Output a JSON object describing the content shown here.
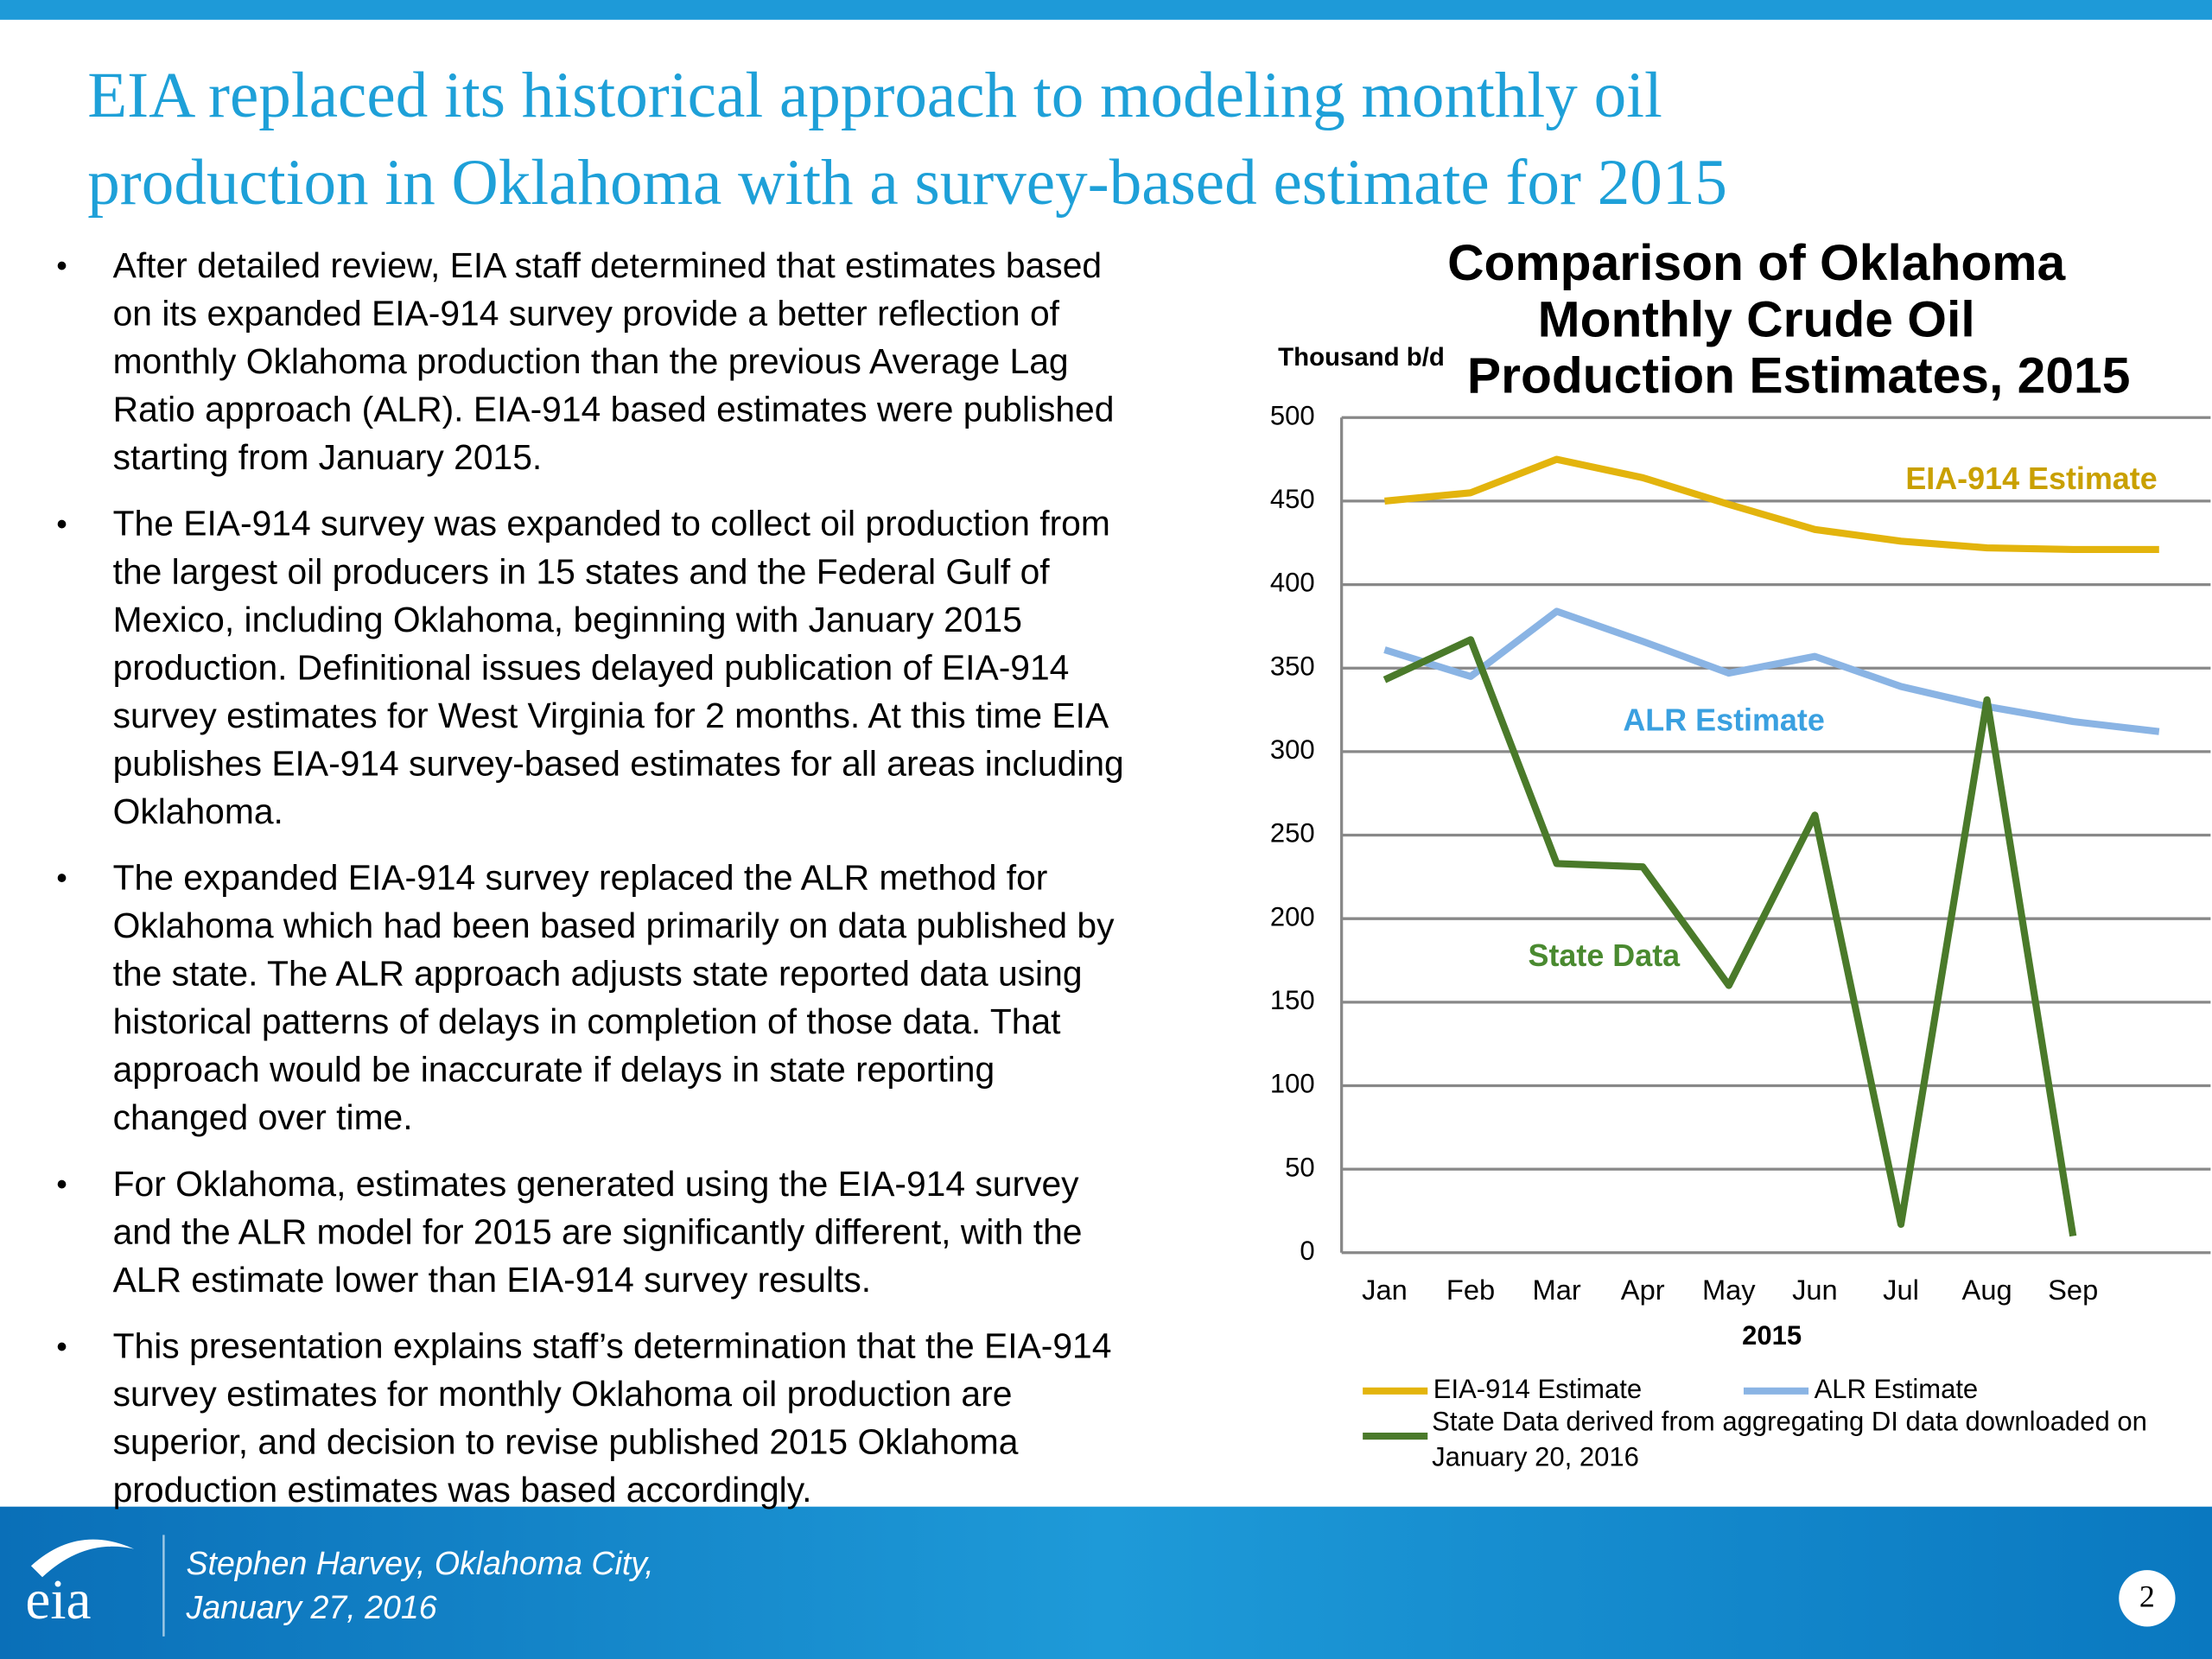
{
  "slide": {
    "title_lines": [
      "EIA replaced its historical approach to modeling monthly oil",
      "production in Oklahoma with a survey-based estimate for 2015"
    ],
    "bullets": [
      [
        "After detailed review, EIA staff determined that estimates based",
        "on its expanded EIA-914 survey provide a better reflection of",
        "monthly Oklahoma production than the previous Average Lag",
        "Ratio approach (ALR). EIA-914 based estimates were published",
        "starting from January 2015."
      ],
      [
        "The EIA-914 survey was expanded to collect oil production from",
        "the largest oil producers in 15 states and the Federal Gulf of",
        "Mexico, including Oklahoma, beginning with January 2015",
        "production. Definitional issues delayed publication of EIA-914",
        "survey estimates for West Virginia for 2 months. At this time EIA",
        "publishes EIA-914 survey-based estimates for all areas including",
        "Oklahoma."
      ],
      [
        "The expanded EIA-914 survey replaced the ALR method for",
        "Oklahoma which had been based primarily on data published by",
        "the state. The ALR approach adjusts state reported data using",
        "historical patterns of delays in completion of those data. That",
        "approach would be inaccurate if delays in state reporting",
        "changed over time."
      ],
      [
        "For Oklahoma, estimates generated using the EIA-914 survey",
        "and the ALR model for 2015 are significantly different, with the",
        "ALR estimate lower than EIA-914 survey results."
      ],
      [
        "This presentation explains staff’s determination that the EIA-914",
        "survey estimates for monthly Oklahoma oil production are",
        "superior, and decision to revise published 2015 Oklahoma",
        "production estimates was based accordingly."
      ]
    ],
    "footer_lines": [
      "Stephen Harvey, Oklahoma City,",
      "January 27, 2016"
    ],
    "logo": "eia",
    "page_number": "2"
  },
  "chart_data": {
    "type": "line",
    "title_lines": [
      "Comparison of Oklahoma",
      "Monthly Crude Oil",
      "Production Estimates, 2015"
    ],
    "y_label": "Thousand b/d",
    "x_label": "2015",
    "categories": [
      "Jan",
      "Feb",
      "Mar",
      "Apr",
      "May",
      "Jun",
      "Jul",
      "Aug",
      "Sep",
      null
    ],
    "series": [
      {
        "name": "EIA-914 Estimate",
        "color": "#e3b40d",
        "values": [
          450,
          455,
          475,
          464,
          448,
          433,
          426,
          422,
          421,
          421
        ]
      },
      {
        "name": "ALR Estimate",
        "color": "#8ab4e4",
        "values": [
          361,
          345,
          384,
          366,
          347,
          357,
          339,
          327,
          318,
          312
        ]
      },
      {
        "name": "State Data derived from aggregating DI data downloaded on January 20, 2016",
        "color": "#4a7a2a",
        "values": [
          343,
          367,
          233,
          231,
          160,
          262,
          17,
          331,
          10,
          null
        ]
      }
    ],
    "annotations": [
      {
        "text": "EIA-914 Estimate",
        "color": "#c9a000"
      },
      {
        "text": "ALR Estimate",
        "color": "#3aa0e0"
      },
      {
        "text": "State Data",
        "color": "#4a8a30"
      }
    ],
    "ylim": [
      0,
      500
    ],
    "yticks": [
      0,
      50,
      100,
      150,
      200,
      250,
      300,
      350,
      400,
      450,
      500
    ],
    "grid": true
  }
}
